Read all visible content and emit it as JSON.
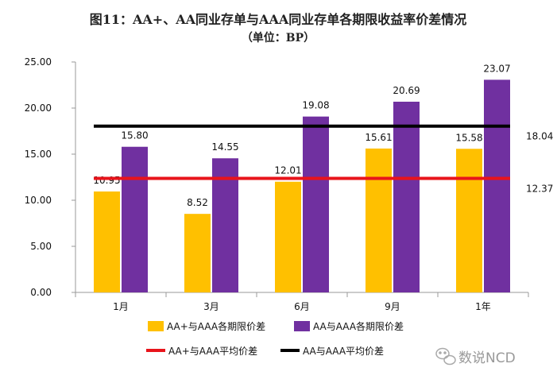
{
  "chart_data": {
    "type": "bar",
    "title": "图11：AA+、AA同业存单与AAA同业存单各期限收益率价差情况",
    "subtitle": "（单位：BP）",
    "categories": [
      "1月",
      "3月",
      "6月",
      "9月",
      "1年"
    ],
    "series": [
      {
        "name": "AA+与AAA各期限价差",
        "color": "#FFC000",
        "values": [
          10.95,
          8.52,
          12.01,
          15.61,
          15.58
        ]
      },
      {
        "name": "AA与AAA各期限价差",
        "color": "#7030A0",
        "values": [
          15.8,
          14.55,
          19.08,
          20.69,
          23.07
        ]
      }
    ],
    "averages": [
      {
        "name": "AA+与AAA平均价差",
        "color": "#E8141B",
        "value": 12.37,
        "label": "12.37"
      },
      {
        "name": "AA与AAA平均价差",
        "color": "#000000",
        "value": 18.04,
        "label": "18.04"
      }
    ],
    "data_labels": [
      [
        "10.95",
        "8.52",
        "12.01",
        "15.61",
        "15.58"
      ],
      [
        "15.80",
        "14.55",
        "19.08",
        "20.69",
        "23.07"
      ]
    ],
    "ylim": [
      0,
      25
    ],
    "yticks": [
      "0.00",
      "5.00",
      "10.00",
      "15.00",
      "20.00",
      "25.00"
    ],
    "xlabel": "",
    "ylabel": "",
    "grid": false,
    "legend_position": "bottom"
  },
  "watermark": {
    "text": "数说NCD",
    "icon": "wechat-icon"
  }
}
